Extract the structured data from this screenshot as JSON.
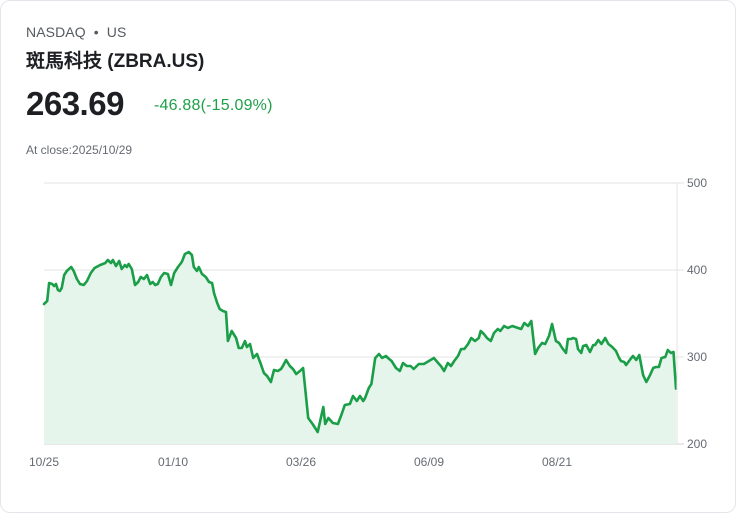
{
  "header": {
    "exchange": "NASDAQ",
    "separator": "•",
    "market": "US",
    "title": "斑馬科技 (ZBRA.US)",
    "price": "263.69",
    "change": "-46.88(-15.09%)",
    "as_of": "At close:2025/10/29"
  },
  "colors": {
    "line": "#1a9e48",
    "fill": "#e6f5ec",
    "grid": "#e3e3e3",
    "change": "#1fa049"
  },
  "chart_data": {
    "type": "area",
    "title": "斑馬科技 (ZBRA.US)",
    "xlabel": "",
    "ylabel": "",
    "ylim": [
      200,
      500
    ],
    "y_ticks": [
      "500",
      "400",
      "300",
      "200"
    ],
    "x_ticks": [
      "10/25",
      "01/10",
      "03/26",
      "06/09",
      "08/21"
    ],
    "grid": true,
    "y_axis_position": "right",
    "last_value": 263.69,
    "x": [
      0,
      0.005,
      0.008,
      0.013,
      0.016,
      0.019,
      0.022,
      0.025,
      0.028,
      0.032,
      0.036,
      0.043,
      0.047,
      0.052,
      0.057,
      0.063,
      0.068,
      0.074,
      0.08,
      0.089,
      0.097,
      0.101,
      0.106,
      0.109,
      0.114,
      0.119,
      0.123,
      0.128,
      0.131,
      0.134,
      0.139,
      0.144,
      0.149,
      0.153,
      0.158,
      0.163,
      0.168,
      0.172,
      0.176,
      0.18,
      0.185,
      0.19,
      0.196,
      0.201,
      0.206,
      0.212,
      0.218,
      0.223,
      0.229,
      0.234,
      0.237,
      0.242,
      0.245,
      0.25,
      0.256,
      0.261,
      0.266,
      0.269,
      0.274,
      0.278,
      0.283,
      0.288,
      0.291,
      0.297,
      0.304,
      0.308,
      0.313,
      0.318,
      0.321,
      0.326,
      0.331,
      0.337,
      0.343,
      0.348,
      0.353,
      0.359,
      0.364,
      0.37,
      0.375,
      0.378,
      0.383,
      0.389,
      0.394,
      0.399,
      0.405,
      0.41,
      0.418,
      0.425,
      0.433,
      0.442,
      0.445,
      0.45,
      0.457,
      0.465,
      0.471,
      0.476,
      0.484,
      0.489,
      0.495,
      0.5,
      0.505,
      0.508,
      0.514,
      0.518,
      0.524,
      0.53,
      0.535,
      0.541,
      0.546,
      0.55,
      0.557,
      0.563,
      0.568,
      0.574,
      0.58,
      0.585,
      0.593,
      0.601,
      0.609,
      0.617,
      0.625,
      0.628,
      0.633,
      0.639,
      0.644,
      0.649,
      0.655,
      0.66,
      0.665,
      0.671,
      0.676,
      0.682,
      0.688,
      0.691,
      0.696,
      0.701,
      0.707,
      0.712,
      0.718,
      0.722,
      0.728,
      0.734,
      0.741,
      0.75,
      0.755,
      0.76,
      0.766,
      0.771,
      0.777,
      0.782,
      0.788,
      0.793,
      0.799,
      0.804,
      0.81,
      0.815,
      0.82,
      0.826,
      0.829,
      0.834,
      0.837,
      0.842,
      0.845,
      0.85,
      0.853,
      0.858,
      0.864,
      0.869,
      0.872,
      0.877,
      0.882,
      0.888,
      0.893,
      0.899,
      0.905,
      0.91,
      0.913,
      0.918,
      0.921,
      0.928,
      0.932,
      0.937,
      0.942,
      0.948,
      0.953,
      0.959,
      0.964,
      0.968,
      0.973,
      0.977,
      0.983,
      0.987,
      0.992,
      0.996,
      1.0
    ],
    "values": [
      360.9,
      364.4,
      385.1,
      383.9,
      381.6,
      383.9,
      377.0,
      375.9,
      379.3,
      394.3,
      398.9,
      403.4,
      398.9,
      389.7,
      383.9,
      382.8,
      387.4,
      396.6,
      402.3,
      405.7,
      408.0,
      411.5,
      408.0,
      411.5,
      404.6,
      410.3,
      401.1,
      405.7,
      403.4,
      406.9,
      401.1,
      382.8,
      386.2,
      392.0,
      389.7,
      394.3,
      383.9,
      386.2,
      382.8,
      383.9,
      392.0,
      396.6,
      395.4,
      382.8,
      396.6,
      403.4,
      409.2,
      418.4,
      420.7,
      417.2,
      403.4,
      398.9,
      403.4,
      395.4,
      392.0,
      386.2,
      385.1,
      373.6,
      362.1,
      355.2,
      352.9,
      351.7,
      318.4,
      329.9,
      321.8,
      310.3,
      310.3,
      318.4,
      311.5,
      314.9,
      298.9,
      303.4,
      292.0,
      281.6,
      278.2,
      271.3,
      285.1,
      283.9,
      286.2,
      289.7,
      296.6,
      289.7,
      286.2,
      280.5,
      283.9,
      287.4,
      229.9,
      223.0,
      213.8,
      242.5,
      223.0,
      229.9,
      224.1,
      223.0,
      234.5,
      244.8,
      246.0,
      255.2,
      249.4,
      255.2,
      249.4,
      252.9,
      264.4,
      269.0,
      298.9,
      303.4,
      298.9,
      301.1,
      297.7,
      295.4,
      287.4,
      283.9,
      293.1,
      289.7,
      289.7,
      286.2,
      292.0,
      292.0,
      295.4,
      298.9,
      292.0,
      289.7,
      283.9,
      293.1,
      289.7,
      295.4,
      301.1,
      309.2,
      309.2,
      314.9,
      321.8,
      318.4,
      321.8,
      329.9,
      326.4,
      321.8,
      318.4,
      327.6,
      332.2,
      329.9,
      335.6,
      333.3,
      335.6,
      333.3,
      332.2,
      339.1,
      335.6,
      341.4,
      303.4,
      310.3,
      316.1,
      314.9,
      324.1,
      337.9,
      318.4,
      316.1,
      310.3,
      304.6,
      320.7,
      320.7,
      321.8,
      320.7,
      309.2,
      304.6,
      312.6,
      313.8,
      305.7,
      313.8,
      313.8,
      319.5,
      314.9,
      321.8,
      314.9,
      311.5,
      306.9,
      298.9,
      295.4,
      294.3,
      290.8,
      297.7,
      301.1,
      296.6,
      302.3,
      279.3,
      271.3,
      279.3,
      287.4,
      288.5,
      288.5,
      298.9,
      300.0,
      308.0,
      304.6,
      305.7,
      263.69
    ]
  }
}
